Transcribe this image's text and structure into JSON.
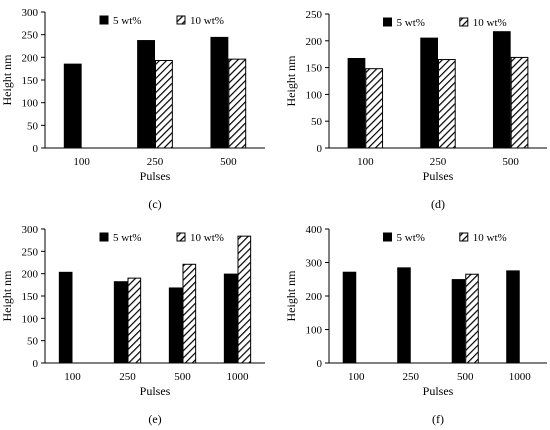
{
  "figure": {
    "panels": [
      {
        "caption": "(c)"
      },
      {
        "caption": "(d)"
      },
      {
        "caption": "(e)"
      },
      {
        "caption": "(f)"
      }
    ]
  },
  "chart_data": [
    {
      "type": "bar",
      "caption": "(c)",
      "xlabel": "Pulses",
      "ylabel": "Height nm",
      "categories": [
        "100",
        "250",
        "500"
      ],
      "ylim": [
        0,
        300
      ],
      "yticks": [
        0,
        50,
        100,
        150,
        200,
        250,
        300
      ],
      "legend": "top",
      "grid": false,
      "series": [
        {
          "name": "5 wt%",
          "pattern": "solid",
          "color": "#000000",
          "values": [
            185,
            237,
            244
          ]
        },
        {
          "name": "10 wt%",
          "pattern": "hatched",
          "color": "#000000",
          "values": [
            null,
            193,
            196
          ]
        }
      ]
    },
    {
      "type": "bar",
      "caption": "(d)",
      "xlabel": "Pulses",
      "ylabel": "Height nm",
      "categories": [
        "100",
        "250",
        "500"
      ],
      "ylim": [
        0,
        250
      ],
      "yticks": [
        0,
        50,
        100,
        150,
        200,
        250
      ],
      "legend": "top",
      "grid": false,
      "series": [
        {
          "name": "5 wt%",
          "pattern": "solid",
          "color": "#000000",
          "values": [
            167,
            205,
            217
          ]
        },
        {
          "name": "10 wt%",
          "pattern": "hatched",
          "color": "#000000",
          "values": [
            148,
            165,
            169
          ]
        }
      ]
    },
    {
      "type": "bar",
      "caption": "(e)",
      "xlabel": "Pulses",
      "ylabel": "Height nm",
      "categories": [
        "100",
        "250",
        "500",
        "1000"
      ],
      "ylim": [
        0,
        300
      ],
      "yticks": [
        0,
        50,
        100,
        150,
        200,
        250,
        300
      ],
      "legend": "top",
      "grid": false,
      "series": [
        {
          "name": "5 wt%",
          "pattern": "solid",
          "color": "#000000",
          "values": [
            203,
            182,
            168,
            199
          ]
        },
        {
          "name": "10 wt%",
          "pattern": "hatched",
          "color": "#000000",
          "values": [
            null,
            190,
            221,
            284
          ]
        }
      ]
    },
    {
      "type": "bar",
      "caption": "(f)",
      "xlabel": "Pulses",
      "ylabel": "Height nm",
      "categories": [
        "100",
        "250",
        "500",
        "1000"
      ],
      "ylim": [
        0,
        400
      ],
      "yticks": [
        0,
        100,
        200,
        300,
        400
      ],
      "legend": "top",
      "grid": false,
      "series": [
        {
          "name": "5 wt%",
          "pattern": "solid",
          "color": "#000000",
          "values": [
            271,
            284,
            249,
            275
          ]
        },
        {
          "name": "10 wt%",
          "pattern": "hatched",
          "color": "#000000",
          "values": [
            null,
            null,
            265,
            null
          ]
        }
      ]
    }
  ]
}
